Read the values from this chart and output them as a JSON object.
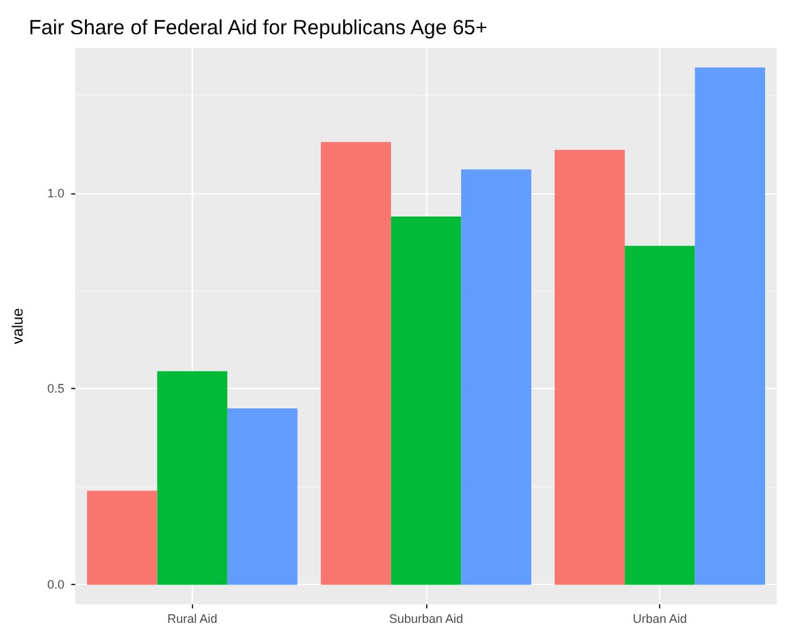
{
  "chart_data": {
    "type": "bar",
    "title": "Fair Share of Federal Aid for Republicans Age 65+",
    "ylabel": "value",
    "categories": [
      "Rural Aid",
      "Suburban Aid",
      "Urban Aid"
    ],
    "series": [
      {
        "color": "#f8766d",
        "values": [
          0.24,
          1.13,
          1.11
        ]
      },
      {
        "color": "#00ba38",
        "values": [
          0.545,
          0.94,
          0.865
        ]
      },
      {
        "color": "#619cff",
        "values": [
          0.45,
          1.06,
          1.32
        ]
      }
    ],
    "ylim": [
      -0.05,
      1.37
    ],
    "yticks": [
      {
        "value": 0,
        "label": "0.0"
      },
      0.5,
      {
        "value": 1,
        "label": "1.0"
      }
    ],
    "grid": true
  }
}
